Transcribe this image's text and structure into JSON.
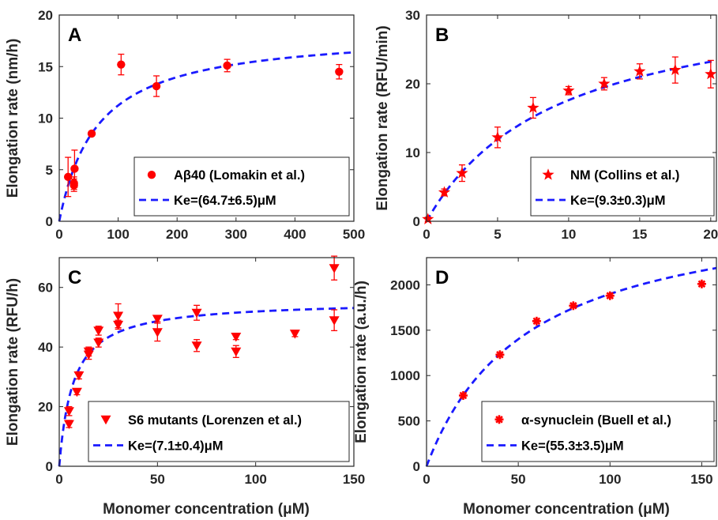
{
  "chart_data": [
    {
      "panel_label": "A",
      "type": "scatter",
      "ylabel": "Elongation rate (nm/h)",
      "xlim": [
        0,
        500
      ],
      "ylim": [
        0,
        20
      ],
      "xticks": [
        0,
        100,
        200,
        300,
        400,
        500
      ],
      "yticks": [
        0,
        5,
        10,
        15,
        20
      ],
      "marker": "circle",
      "color": "#ff0000",
      "fit_color": "#1a1aff",
      "series": [
        {
          "name": "Aβ40 (Lomakin et al.)",
          "x": [
            15,
            25,
            25,
            26,
            55,
            105,
            165,
            285,
            475
          ],
          "y": [
            4.3,
            3.7,
            3.5,
            5.1,
            8.5,
            15.2,
            13.1,
            15.1,
            14.5
          ],
          "err": [
            1.9,
            0.6,
            0.6,
            1.8,
            0.2,
            1.0,
            1.0,
            0.6,
            0.7
          ]
        }
      ],
      "fit": {
        "vmax": 18.5,
        "Ke": 64.7
      },
      "legend": {
        "markers": [
          "circle",
          "dash"
        ],
        "entries": [
          "Aβ40 (Lomakin et al.)",
          "Ke=(64.7±6.5)μM"
        ],
        "placement": "bottom-right"
      }
    },
    {
      "panel_label": "B",
      "type": "scatter",
      "ylabel": "Elongation rate (RFU/min)",
      "xlim": [
        0,
        20.4
      ],
      "ylim": [
        0,
        30
      ],
      "xticks": [
        0,
        5,
        10,
        15,
        20
      ],
      "yticks": [
        0,
        10,
        20,
        30
      ],
      "marker": "star",
      "color": "#ff0000",
      "fit_color": "#1a1aff",
      "series": [
        {
          "name": "NM (Collins et al.)",
          "x": [
            0.1,
            1.25,
            2.5,
            5,
            7.5,
            10,
            12.5,
            15,
            17.5,
            20
          ],
          "y": [
            0.3,
            4.2,
            7.0,
            12.2,
            16.5,
            19.0,
            20.0,
            21.8,
            22.0,
            21.4
          ],
          "err": [
            0.3,
            0.5,
            1.2,
            1.5,
            1.5,
            0.6,
            0.9,
            1.1,
            1.9,
            2.0
          ]
        }
      ],
      "fit": {
        "vmax": 34.0,
        "Ke": 9.3
      },
      "legend": {
        "markers": [
          "star",
          "dash"
        ],
        "entries": [
          "NM (Collins et al.)",
          "Ke=(9.3±0.3)μM"
        ],
        "placement": "bottom-right"
      }
    },
    {
      "panel_label": "C",
      "type": "scatter",
      "ylabel": "Elongation rate (RFU/h)",
      "xlabel": "Monomer concentration (μM)",
      "xlim": [
        0,
        150
      ],
      "ylim": [
        0,
        70
      ],
      "xticks": [
        0,
        50,
        100,
        150
      ],
      "yticks": [
        0,
        20,
        40,
        60
      ],
      "marker": "triangle-down",
      "color": "#ff0000",
      "fit_color": "#1a1aff",
      "series": [
        {
          "name": "S6 mutants (Lorenzen et al.)",
          "x": [
            5,
            5,
            9,
            10,
            15,
            15,
            20,
            20,
            30,
            30,
            50,
            50,
            70,
            70,
            90,
            90,
            120,
            140,
            140
          ],
          "y": [
            18.5,
            14.2,
            25.0,
            30.5,
            37.5,
            38.5,
            41.5,
            45.5,
            47.5,
            50.5,
            45.0,
            49.5,
            40.5,
            51.5,
            38.5,
            43.5,
            44.5,
            66.5,
            49.0
          ],
          "err": [
            1.5,
            1.2,
            1.0,
            1.2,
            1.6,
            1.5,
            1.5,
            1.5,
            1.5,
            4.0,
            3.0,
            1.0,
            2.0,
            2.5,
            2.0,
            1.0,
            1.0,
            4.0,
            3.5
          ]
        }
      ],
      "fit": {
        "vmax": 55.6,
        "Ke": 7.1
      },
      "legend": {
        "markers": [
          "triangle-down",
          "dash"
        ],
        "entries": [
          "S6 mutants (Lorenzen et al.)",
          "Ke=(7.1±0.4)μM"
        ],
        "placement": "bottom-right"
      }
    },
    {
      "panel_label": "D",
      "type": "scatter",
      "ylabel": "Elongation rate (a.u./h)",
      "xlabel": "Monomer concentration (μM)",
      "xlim": [
        0,
        158
      ],
      "ylim": [
        0,
        2300
      ],
      "xticks": [
        0,
        50,
        100,
        150
      ],
      "yticks": [
        0,
        500,
        1000,
        1500,
        2000
      ],
      "marker": "asterisk",
      "color": "#ff0000",
      "fit_color": "#1a1aff",
      "series": [
        {
          "name": "α-synuclein (Buell et al.)",
          "x": [
            20,
            40,
            60,
            80,
            100,
            150
          ],
          "y": [
            780,
            1230,
            1600,
            1770,
            1880,
            2010
          ],
          "err": [
            0,
            0,
            0,
            0,
            0,
            0
          ]
        }
      ],
      "fit": {
        "vmax": 2950,
        "Ke": 55.3
      },
      "legend": {
        "markers": [
          "asterisk",
          "dash"
        ],
        "entries": [
          "α-synuclein (Buell et al.)",
          "Ke=(55.3±3.5)μM"
        ],
        "placement": "bottom-right"
      }
    }
  ]
}
